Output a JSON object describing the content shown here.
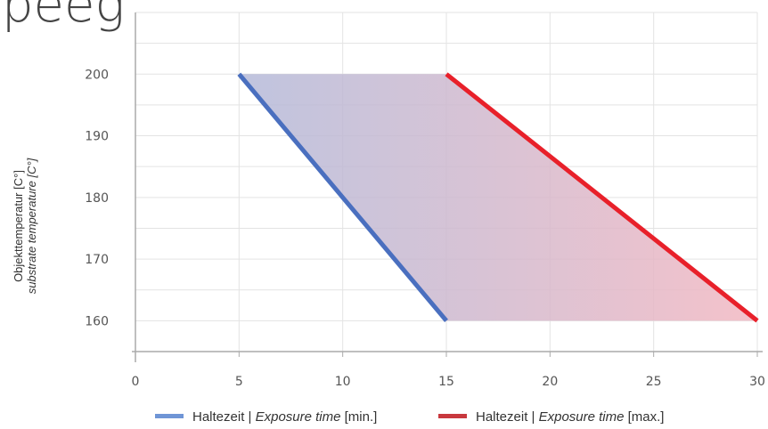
{
  "title_fragment": "peeg",
  "chart_data": {
    "type": "area",
    "ylabel": {
      "de": "Objekttemperatur [C°]",
      "en": "substrate temperature [C°]"
    },
    "xlim": [
      0,
      30
    ],
    "ylim": [
      155,
      210
    ],
    "x_ticks": [
      0,
      5,
      10,
      15,
      20,
      25,
      30
    ],
    "y_ticks": [
      160,
      170,
      180,
      190,
      200
    ],
    "grid": true,
    "legend_position": "bottom",
    "series": [
      {
        "name": "min",
        "color": "#4a6fbf",
        "points": [
          {
            "x": 5,
            "y": 200
          },
          {
            "x": 15,
            "y": 160
          }
        ]
      },
      {
        "name": "max",
        "color": "#e8202a",
        "points": [
          {
            "x": 15,
            "y": 200
          },
          {
            "x": 30,
            "y": 160
          }
        ]
      }
    ],
    "band": {
      "from_color": "#b4bad9",
      "to_color": "#f2b7c1"
    }
  },
  "legend": {
    "min": {
      "de": "Haltezeit | ",
      "en": "Exposure time",
      "unit": " [min.]",
      "color": "#6f95d6"
    },
    "max": {
      "de": "Haltezeit | ",
      "en": "Exposure time",
      "unit": " [max.]",
      "color": "#c8383e"
    }
  }
}
